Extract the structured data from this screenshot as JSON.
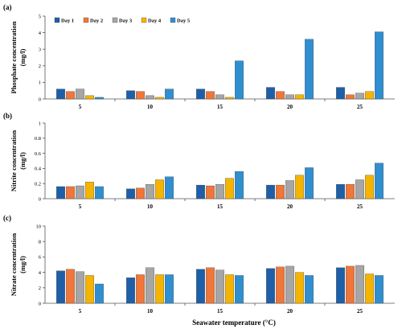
{
  "chart_data": [
    {
      "panel": "(a)",
      "type": "bar",
      "ylabel_line1": "Phosphate concentration",
      "ylabel_line2": "(mg/l)",
      "ylim": [
        0,
        5
      ],
      "yticks": [
        0,
        1,
        2,
        3,
        4,
        5
      ],
      "categories": [
        "5",
        "10",
        "15",
        "20",
        "25"
      ],
      "series": [
        {
          "name": "Day 1",
          "values": [
            0.6,
            0.5,
            0.6,
            0.7,
            0.7
          ]
        },
        {
          "name": "Day 2",
          "values": [
            0.45,
            0.45,
            0.45,
            0.45,
            0.25
          ]
        },
        {
          "name": "Day 3",
          "values": [
            0.6,
            0.2,
            0.25,
            0.25,
            0.35
          ]
        },
        {
          "name": "Day 4",
          "values": [
            0.2,
            0.1,
            0.1,
            0.25,
            0.45
          ]
        },
        {
          "name": "Day 5",
          "values": [
            0.1,
            0.6,
            2.3,
            3.6,
            4.05
          ]
        }
      ],
      "legend": "top-left",
      "grid": false
    },
    {
      "panel": "(b)",
      "type": "bar",
      "ylabel_line1": "Nitrite concentration",
      "ylabel_line2": "(mg/l)",
      "ylim": [
        0,
        1
      ],
      "yticks": [
        0,
        0.2,
        0.4,
        0.6,
        0.8,
        1
      ],
      "categories": [
        "5",
        "10",
        "15",
        "20",
        "25"
      ],
      "series": [
        {
          "name": "Day 1",
          "values": [
            0.16,
            0.13,
            0.18,
            0.18,
            0.19
          ]
        },
        {
          "name": "Day 2",
          "values": [
            0.16,
            0.14,
            0.17,
            0.18,
            0.19
          ]
        },
        {
          "name": "Day 3",
          "values": [
            0.17,
            0.19,
            0.19,
            0.24,
            0.25
          ]
        },
        {
          "name": "Day 4",
          "values": [
            0.22,
            0.25,
            0.27,
            0.31,
            0.31
          ]
        },
        {
          "name": "Day 5",
          "values": [
            0.16,
            0.29,
            0.36,
            0.41,
            0.47
          ]
        }
      ],
      "grid": false
    },
    {
      "panel": "(c)",
      "type": "bar",
      "ylabel_line1": "Nitrate concentration",
      "ylabel_line2": "(mg/l)",
      "ylim": [
        0,
        10
      ],
      "yticks": [
        0,
        2,
        4,
        6,
        8,
        10
      ],
      "categories": [
        "5",
        "10",
        "15",
        "20",
        "25"
      ],
      "series": [
        {
          "name": "Day 1",
          "values": [
            4.2,
            3.3,
            4.4,
            4.5,
            4.6
          ]
        },
        {
          "name": "Day 2",
          "values": [
            4.4,
            3.7,
            4.6,
            4.7,
            4.8
          ]
        },
        {
          "name": "Day 3",
          "values": [
            4.1,
            4.6,
            4.3,
            4.8,
            4.9
          ]
        },
        {
          "name": "Day 4",
          "values": [
            3.6,
            3.7,
            3.7,
            4.0,
            3.8
          ]
        },
        {
          "name": "Day 5",
          "values": [
            2.5,
            3.7,
            3.6,
            3.6,
            3.6
          ]
        }
      ],
      "grid": false
    }
  ],
  "xlabel": "Seawater temperature (°C)",
  "colors": {
    "Day 1": "#1f5fa8",
    "Day 2": "#f0763a",
    "Day 3": "#a6a6a6",
    "Day 4": "#f5b400",
    "Day 5": "#2f8fd0"
  }
}
